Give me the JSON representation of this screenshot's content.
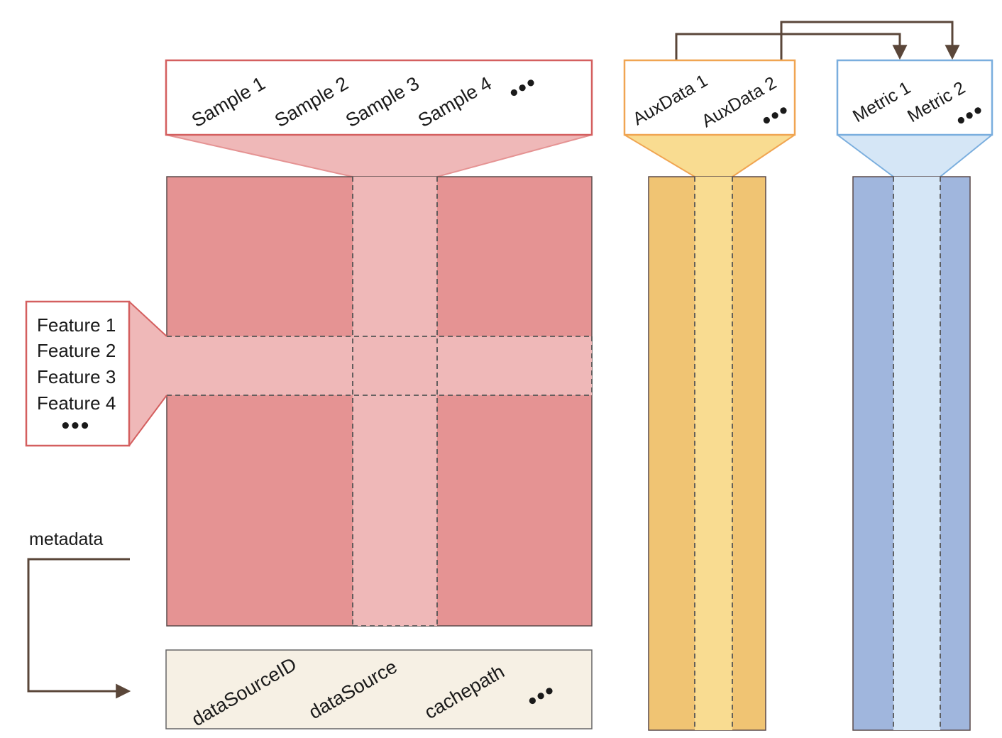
{
  "samples": {
    "labels": [
      "Sample 1",
      "Sample 2",
      "Sample 3",
      "Sample 4"
    ],
    "more": "•••"
  },
  "aux_data": {
    "labels": [
      "AuxData 1",
      "AuxData 2"
    ],
    "more": "•••"
  },
  "metrics": {
    "labels": [
      "Metric 1",
      "Metric 2"
    ],
    "more": "•••"
  },
  "features": {
    "labels": [
      "Feature 1",
      "Feature 2",
      "Feature 3",
      "Feature 4"
    ],
    "more": "•••"
  },
  "metadata": {
    "label": "metadata",
    "fields": [
      "dataSourceID",
      "dataSource",
      "cachepath"
    ],
    "more": "•••"
  },
  "colors": {
    "matrix": "#e59393",
    "matrix_highlight": "#efb8b8",
    "matrix_border": "#d45f5f",
    "aux": "#f0c473",
    "aux_highlight": "#f9dc91",
    "aux_border": "#f0a552",
    "metric": "#a0b6dd",
    "metric_highlight": "#d5e6f6",
    "metric_border": "#7aaede",
    "metadata_fill": "#f6f0e4",
    "arrow": "#5a4639"
  }
}
